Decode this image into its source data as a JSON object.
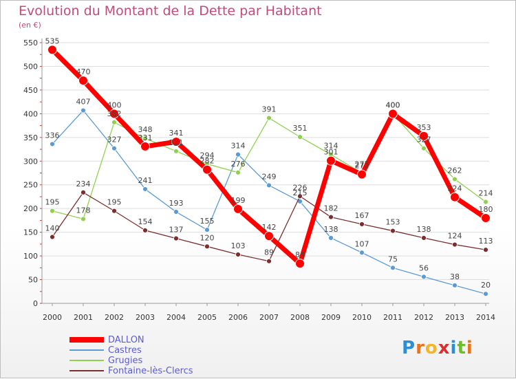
{
  "header": {
    "title": "Evolution du Montant de la Dette par Habitant",
    "subtitle": "(en €)"
  },
  "colors": {
    "title": "#c04b7a",
    "axis_text": "#333333",
    "grid": "#dddddd",
    "legend_text": "#5b5bd6",
    "label_text": "#444444"
  },
  "logo": {
    "text": "Proxiti",
    "letters": [
      "P",
      "r",
      "o",
      "x",
      "i",
      "t",
      "i"
    ],
    "colors": [
      "#2b8fd6",
      "#e8731c",
      "#f2b62a",
      "#d92f2f",
      "#2b8fd6",
      "#6cbf2a",
      "#e8731c"
    ]
  },
  "chart_data": {
    "type": "line",
    "title": "Evolution du Montant de la Dette par Habitant",
    "subtitle": "(en €)",
    "x": [
      "2000",
      "2001",
      "2002",
      "2003",
      "2004",
      "2005",
      "2006",
      "2007",
      "2008",
      "2009",
      "2010",
      "2011",
      "2012",
      "2013",
      "2014"
    ],
    "ylim": [
      0,
      550
    ],
    "yticks": [
      0,
      50,
      100,
      150,
      200,
      250,
      300,
      350,
      400,
      450,
      500,
      550
    ],
    "grid": true,
    "legend": "bottom-left",
    "series": [
      {
        "name": "DALLON",
        "color": "#ff0000",
        "values": [
          535,
          470,
          400,
          331,
          341,
          282,
          199,
          142,
          84,
          301,
          272,
          400,
          353,
          224,
          180
        ]
      },
      {
        "name": "Castres",
        "color": "#5b9bd5",
        "values": [
          336,
          407,
          327,
          241,
          193,
          155,
          314,
          249,
          215,
          138,
          107,
          75,
          56,
          38,
          20
        ]
      },
      {
        "name": "Grugies",
        "color": "#8fd14f",
        "values": [
          195,
          178,
          382,
          348,
          321,
          294,
          276,
          391,
          351,
          314,
          275,
          400,
          327,
          262,
          214
        ]
      },
      {
        "name": "Fontaine-lès-Clercs",
        "color": "#7b2e2e",
        "values": [
          140,
          234,
          195,
          154,
          137,
          120,
          103,
          89,
          226,
          182,
          167,
          153,
          138,
          124,
          113
        ]
      }
    ]
  }
}
